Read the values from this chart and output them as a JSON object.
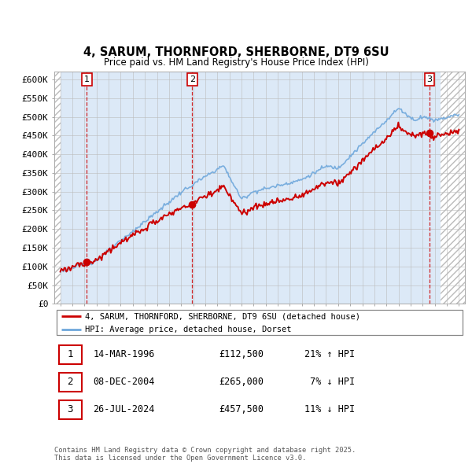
{
  "title": "4, SARUM, THORNFORD, SHERBORNE, DT9 6SU",
  "subtitle": "Price paid vs. HM Land Registry's House Price Index (HPI)",
  "legend_entry1": "4, SARUM, THORNFORD, SHERBORNE, DT9 6SU (detached house)",
  "legend_entry2": "HPI: Average price, detached house, Dorset",
  "footer": "Contains HM Land Registry data © Crown copyright and database right 2025.\nThis data is licensed under the Open Government Licence v3.0.",
  "transactions": [
    {
      "label": "1",
      "date": "14-MAR-1996",
      "price": 112500,
      "hpi_relation": "21% ↑ HPI",
      "x_year": 1996.2
    },
    {
      "label": "2",
      "date": "08-DEC-2004",
      "price": 265000,
      "hpi_relation": "7% ↓ HPI",
      "x_year": 2004.93
    },
    {
      "label": "3",
      "date": "26-JUL-2024",
      "price": 457500,
      "hpi_relation": "11% ↓ HPI",
      "x_year": 2024.56
    }
  ],
  "xmin": 1993.5,
  "xmax": 2027.5,
  "ymin": 0,
  "ymax": 620000,
  "yticks": [
    0,
    50000,
    100000,
    150000,
    200000,
    250000,
    300000,
    350000,
    400000,
    450000,
    500000,
    550000,
    600000
  ],
  "ytick_labels": [
    "£0",
    "£50K",
    "£100K",
    "£150K",
    "£200K",
    "£250K",
    "£300K",
    "£350K",
    "£400K",
    "£450K",
    "£500K",
    "£550K",
    "£600K"
  ],
  "hpi_color": "#6fa8dc",
  "price_color": "#cc0000",
  "marker_color": "#cc0000",
  "bg_color": "#dce9f7",
  "hatch_bg": "#e8e8e8",
  "grid_color": "#bbbbbb",
  "dashed_line_color": "#cc0000",
  "data_start_year": 1994.0,
  "data_end_year": 2025.5,
  "row_data": [
    [
      "1",
      "14-MAR-1996",
      "£112,500",
      "21% ↑ HPI"
    ],
    [
      "2",
      "08-DEC-2004",
      "£265,000",
      " 7% ↓ HPI"
    ],
    [
      "3",
      "26-JUL-2024",
      "£457,500",
      "11% ↓ HPI"
    ]
  ]
}
